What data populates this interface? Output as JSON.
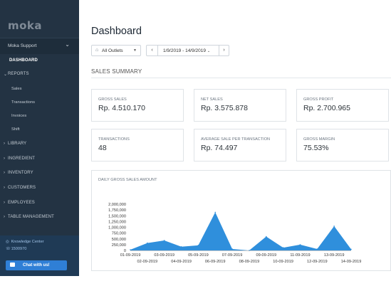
{
  "sidebar": {
    "logo": "moka",
    "account": "Moka Support",
    "nav": [
      {
        "label": "DASHBOARD",
        "active": true,
        "arrow": ""
      },
      {
        "label": "REPORTS",
        "arrow": "⌄"
      },
      {
        "label": "Sales",
        "sub": true
      },
      {
        "label": "Transactions",
        "sub": true
      },
      {
        "label": "Invoices",
        "sub": true
      },
      {
        "label": "Shift",
        "sub": true
      },
      {
        "label": "LIBRARY",
        "arrow": "›"
      },
      {
        "label": "INGREDIENT",
        "arrow": "›"
      },
      {
        "label": "INVENTORY",
        "arrow": "›"
      },
      {
        "label": "CUSTOMERS",
        "arrow": "›"
      },
      {
        "label": "EMPLOYEES",
        "arrow": "›"
      },
      {
        "label": "TABLE MANAGEMENT",
        "arrow": "›"
      }
    ],
    "knowledge_center": "Knowledge Center",
    "phone": "1500970",
    "chat_label": "Chat with us!"
  },
  "main": {
    "title": "Dashboard",
    "outlet_label": "All Outlets",
    "date_range": "1/9/2019 - 14/9/2019",
    "section_title": "SALES SUMMARY",
    "cards": [
      {
        "label": "GROSS SALES",
        "value": "Rp. 4.510.170"
      },
      {
        "label": "NET SALES",
        "value": "Rp. 3.575.878"
      },
      {
        "label": "GROSS PROFIT",
        "value": "Rp. 2.700.965"
      },
      {
        "label": "TRANSACTIONS",
        "value": "48"
      },
      {
        "label": "AVERAGE SALE PER TRANSACTION",
        "value": "Rp. 74.497"
      },
      {
        "label": "GROSS MARGIN",
        "value": "75.53%"
      }
    ]
  },
  "chart_data": {
    "type": "area",
    "title": "DAILY GROSS SALES AMOUNT",
    "categories": [
      "01-09-2019",
      "02-09-2019",
      "03-09-2019",
      "04-09-2019",
      "05-09-2019",
      "06-09-2019",
      "07-09-2019",
      "08-09-2019",
      "09-09-2019",
      "10-09-2019",
      "11-09-2019",
      "12-09-2019",
      "13-09-2019",
      "14-09-2019"
    ],
    "values": [
      30000,
      320000,
      430000,
      160000,
      220000,
      1650000,
      60000,
      0,
      600000,
      120000,
      250000,
      60000,
      1050000,
      50000
    ],
    "yticks": [
      "0",
      "250,000",
      "500,000",
      "750,000",
      "1,000,000",
      "1,250,000",
      "1,500,000",
      "1,750,000",
      "2,000,000"
    ],
    "ylim": [
      0,
      2000000
    ],
    "color": "#2f8fdc"
  }
}
